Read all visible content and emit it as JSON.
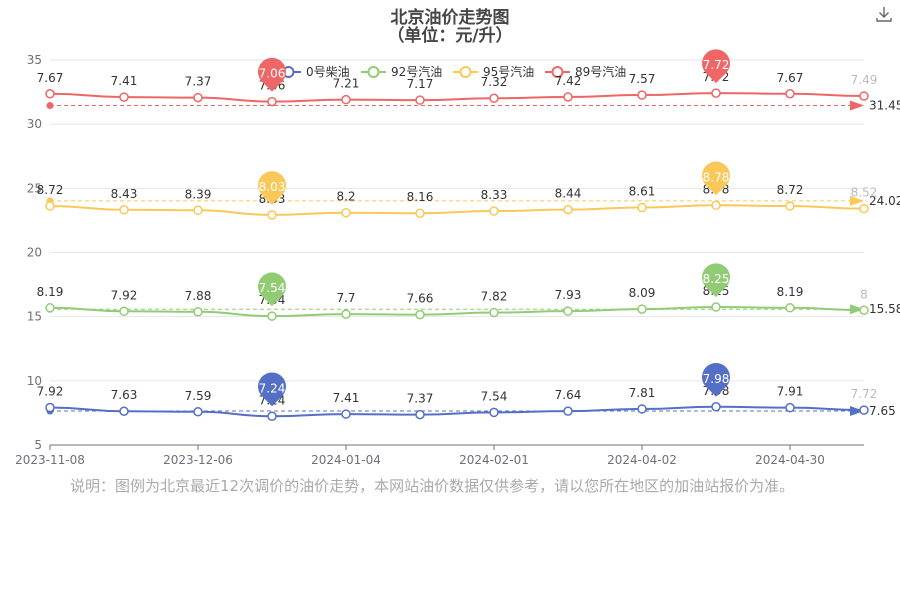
{
  "title": "北京油价走势图",
  "subtitle": "（单位：元/升）",
  "note": "说明：图例为北京最近12次调价的油价走势，本网站油价数据仅供参考，请以您所在地区的加油站报价为准。",
  "toolbar": {
    "icon": "download-icon"
  },
  "chart_data": {
    "type": "line",
    "ylim": [
      5,
      35
    ],
    "yticks": [
      5,
      10,
      15,
      20,
      25,
      30,
      35
    ],
    "x_ticklabels": [
      {
        "index": 0,
        "label": "2023-11-08"
      },
      {
        "index": 2,
        "label": "2023-12-06"
      },
      {
        "index": 4,
        "label": "2024-01-04"
      },
      {
        "index": 6,
        "label": "2024-02-01"
      },
      {
        "index": 8,
        "label": "2024-04-02"
      },
      {
        "index": 10,
        "label": "2024-04-30"
      }
    ],
    "legend_position": "top-center",
    "series": [
      {
        "name": "0号柴油",
        "color": "#5470c6",
        "offset": 0,
        "values": [
          7.92,
          7.63,
          7.59,
          7.24,
          7.41,
          7.37,
          7.54,
          7.64,
          7.81,
          7.98,
          7.91,
          7.72
        ],
        "min_label": "7.24",
        "max_label": "7.98",
        "average": "7.65"
      },
      {
        "name": "92号汽油",
        "color": "#91cc75",
        "offset": 7.5,
        "values": [
          8.19,
          7.92,
          7.88,
          7.54,
          7.7,
          7.66,
          7.82,
          7.93,
          8.09,
          8.25,
          8.19,
          8
        ],
        "min_label": "7.54",
        "max_label": "8.25",
        "average": "15.58"
      },
      {
        "name": "95号汽油",
        "color": "#fac858",
        "offset": 14.9,
        "values": [
          8.72,
          8.43,
          8.39,
          8.03,
          8.2,
          8.16,
          8.33,
          8.44,
          8.61,
          8.78,
          8.72,
          8.52
        ],
        "min_label": "8.03",
        "max_label": "8.78",
        "average": "24.02"
      },
      {
        "name": "89号汽油",
        "color": "#ee6666",
        "offset": 24.7,
        "values": [
          7.67,
          7.41,
          7.37,
          7.06,
          7.21,
          7.17,
          7.32,
          7.42,
          7.57,
          7.72,
          7.67,
          7.49
        ],
        "min_label": "7.06",
        "max_label": "7.72",
        "average": "31.45"
      }
    ]
  }
}
